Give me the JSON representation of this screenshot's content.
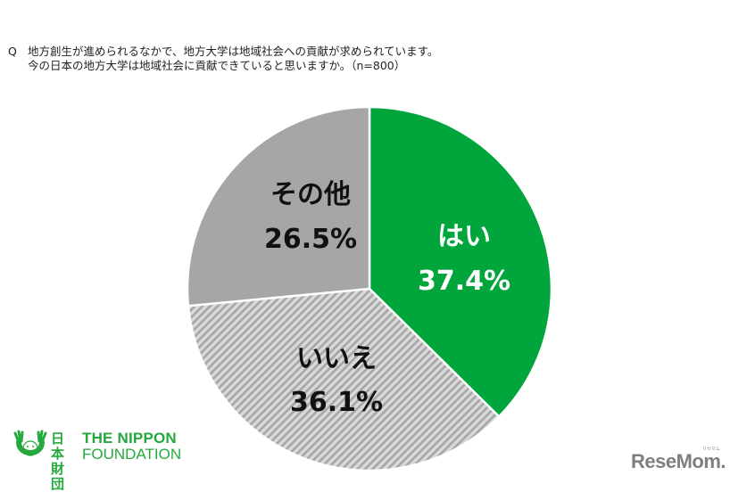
{
  "question": {
    "mark": "Q",
    "lines": [
      "地方創生が進められるなかで、地方大学は地域社会への貢献が求められています。",
      "今の日本の地方大学は地域社会に貢献できていると思いますか。（n=800）"
    ]
  },
  "slices": [
    {
      "label": "はい",
      "value_label": "37.4%",
      "color": "#00a63c",
      "pattern": "solid",
      "text_color": "#ffffff"
    },
    {
      "label": "いいえ",
      "value_label": "36.1%",
      "color": "#d9d9d9",
      "pattern": "diagonal-hatch",
      "stripe_color": "#a6a6a6",
      "text_color": "#111111"
    },
    {
      "label": "その他",
      "value_label": "26.5%",
      "color": "#a6a6a6",
      "pattern": "solid",
      "text_color": "#111111"
    }
  ],
  "logos": {
    "nippon_foundation": {
      "kanji_line1": "日本",
      "kanji_line2": "財団",
      "en_line1": "THE NIPPON",
      "en_line2": "FOUNDATION",
      "color": "#25a93e"
    },
    "resemom": {
      "word": "ReseMom.",
      "kana": "リセマム",
      "color": "#7f7f7f"
    }
  },
  "chart_data": {
    "type": "pie",
    "title": "地方創生が進められるなかで、地方大学は地域社会への貢献が求められています。今の日本の地方大学は地域社会に貢献できていると思いますか。（n=800）",
    "categories": [
      "はい",
      "いいえ",
      "その他"
    ],
    "values": [
      37.4,
      36.1,
      26.5
    ],
    "unit": "%",
    "sample_size": 800,
    "start_angle": "12 o'clock",
    "direction": "clockwise",
    "colors": [
      "#00a63c",
      "#d9d9d9 hatched",
      "#a6a6a6"
    ],
    "legend": "none (labels inside slices)"
  }
}
